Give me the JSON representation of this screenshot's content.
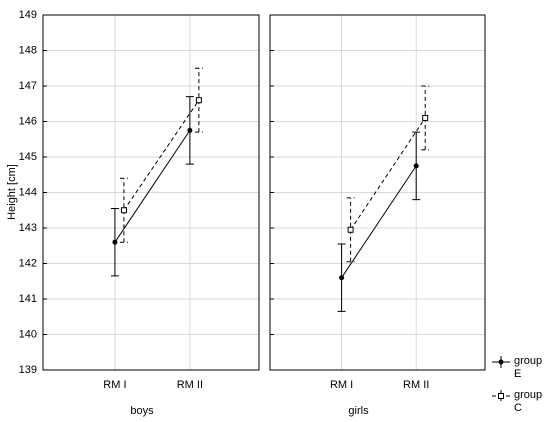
{
  "chart_data": {
    "type": "errorbar-line",
    "ylabel": "Height [cm]",
    "categories": [
      "RM I",
      "RM II"
    ],
    "ylim": [
      139,
      149
    ],
    "yticks": [
      139,
      140,
      141,
      142,
      143,
      144,
      145,
      146,
      147,
      148,
      149
    ],
    "grid": true,
    "legend": "bottom-right",
    "series": [
      {
        "name": "group E",
        "color": "#000000",
        "linestyle": "solid",
        "marker": "circle"
      },
      {
        "name": "group C",
        "color": "#000000",
        "linestyle": "dashed",
        "marker": "square"
      }
    ],
    "panels": [
      {
        "label": "boys",
        "values": [
          [
            142.6,
            145.75
          ],
          [
            143.5,
            146.6
          ]
        ],
        "errors": [
          [
            0.95,
            0.95
          ],
          [
            0.9,
            0.9
          ]
        ]
      },
      {
        "label": "girls",
        "values": [
          [
            141.6,
            144.75
          ],
          [
            142.95,
            146.1
          ]
        ],
        "errors": [
          [
            0.95,
            0.95
          ],
          [
            0.9,
            0.9
          ]
        ]
      }
    ]
  }
}
